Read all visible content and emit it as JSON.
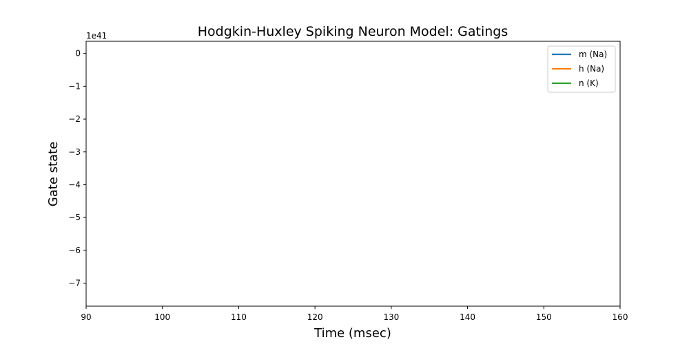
{
  "chart_data": {
    "type": "line",
    "title": "Hodgkin-Huxley Spiking Neuron Model: Gatings",
    "xlabel": "Time (msec)",
    "ylabel": "Gate state",
    "y_offset_label": "1e41",
    "xlim": [
      90,
      160
    ],
    "ylim": [
      -7.7,
      0.37
    ],
    "x_ticks": [
      90,
      100,
      110,
      120,
      130,
      140,
      150,
      160
    ],
    "y_ticks": [
      0,
      -1,
      -2,
      -3,
      -4,
      -5,
      -6,
      -7
    ],
    "y_tick_labels": [
      "0",
      "−1",
      "−2",
      "−3",
      "−4",
      "−5",
      "−6",
      "−7"
    ],
    "grid": false,
    "legend_position": "top-right",
    "series": [
      {
        "name": "m (Na)",
        "color": "#1f77b4",
        "x": [],
        "y": []
      },
      {
        "name": "h (Na)",
        "color": "#ff7f0e",
        "x": [],
        "y": []
      },
      {
        "name": "n (K)",
        "color": "#2ca02c",
        "x": [],
        "y": []
      }
    ]
  }
}
